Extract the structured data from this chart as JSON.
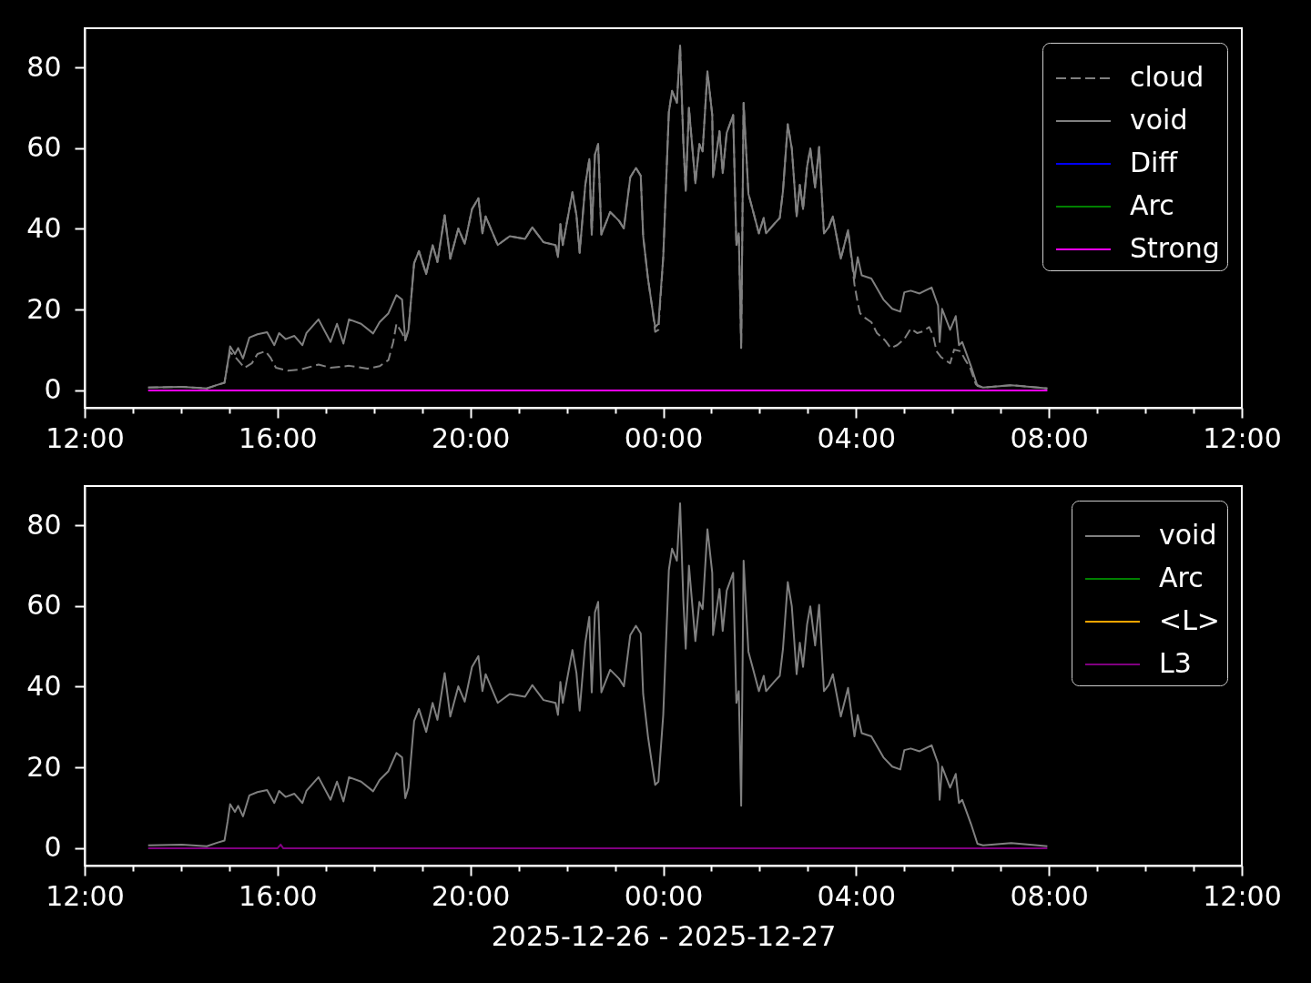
{
  "chart_data": [
    {
      "type": "line",
      "line_style": "solid",
      "legend": "top right",
      "xlim": [
        "2025-12-26T12:00",
        "2025-12-27T12:00"
      ],
      "ylim": [
        -4.3,
        89.7
      ],
      "yticks": [
        0,
        20,
        40,
        60,
        80
      ],
      "xticks": [
        {
          "value": "2025-12-26T12:00",
          "label": "12:00"
        },
        {
          "value": "2025-12-26T13:00",
          "label": null
        },
        {
          "value": "2025-12-26T14:00",
          "label": null
        },
        {
          "value": "2025-12-26T15:00",
          "label": null
        },
        {
          "value": "2025-12-26T16:00",
          "label": "16:00"
        },
        {
          "value": "2025-12-26T17:00",
          "label": null
        },
        {
          "value": "2025-12-26T18:00",
          "label": null
        },
        {
          "value": "2025-12-26T19:00",
          "label": null
        },
        {
          "value": "2025-12-26T20:00",
          "label": "20:00"
        },
        {
          "value": "2025-12-26T21:00",
          "label": null
        },
        {
          "value": "2025-12-26T22:00",
          "label": null
        },
        {
          "value": "2025-12-26T23:00",
          "label": null
        },
        {
          "value": "2025-12-27T00:00",
          "label": "00:00"
        },
        {
          "value": "2025-12-27T01:00",
          "label": null
        },
        {
          "value": "2025-12-27T02:00",
          "label": null
        },
        {
          "value": "2025-12-27T03:00",
          "label": null
        },
        {
          "value": "2025-12-27T04:00",
          "label": "04:00"
        },
        {
          "value": "2025-12-27T05:00",
          "label": null
        },
        {
          "value": "2025-12-27T06:00",
          "label": null
        },
        {
          "value": "2025-12-27T07:00",
          "label": null
        },
        {
          "value": "2025-12-27T08:00",
          "label": "08:00"
        },
        {
          "value": "2025-12-27T09:00",
          "label": null
        },
        {
          "value": "2025-12-27T10:00",
          "label": null
        },
        {
          "value": "2025-12-27T11:00",
          "label": null
        },
        {
          "value": "2025-12-27T12:00",
          "label": "12:00"
        }
      ],
      "x": [
        "2025-12-26T13:19",
        "2025-12-26T14:01",
        "2025-12-26T14:32",
        "2025-12-26T14:44",
        "2025-12-26T14:54",
        "2025-12-26T14:58",
        "2025-12-26T15:01",
        "2025-12-26T15:07",
        "2025-12-26T15:11",
        "2025-12-26T15:17",
        "2025-12-26T15:25",
        "2025-12-26T15:35",
        "2025-12-26T15:47",
        "2025-12-26T15:56",
        "2025-12-26T16:02",
        "2025-12-26T16:10",
        "2025-12-26T16:21",
        "2025-12-26T16:31",
        "2025-12-26T16:36",
        "2025-12-26T16:51",
        "2025-12-26T17:06",
        "2025-12-26T17:14",
        "2025-12-26T17:22",
        "2025-12-26T17:29",
        "2025-12-26T17:44",
        "2025-12-26T17:59",
        "2025-12-26T18:07",
        "2025-12-26T18:18",
        "2025-12-26T18:28",
        "2025-12-26T18:35",
        "2025-12-26T18:39",
        "2025-12-26T18:43",
        "2025-12-26T18:50",
        "2025-12-26T18:56",
        "2025-12-26T19:05",
        "2025-12-26T19:13",
        "2025-12-26T19:19",
        "2025-12-26T19:28",
        "2025-12-26T19:35",
        "2025-12-26T19:45",
        "2025-12-26T19:53",
        "2025-12-26T20:02",
        "2025-12-26T20:10",
        "2025-12-26T20:15",
        "2025-12-26T20:19",
        "2025-12-26T20:34",
        "2025-12-26T20:49",
        "2025-12-26T21:08",
        "2025-12-26T21:17",
        "2025-12-26T21:31",
        "2025-12-26T21:46",
        "2025-12-26T21:49",
        "2025-12-26T21:52",
        "2025-12-26T21:55",
        "2025-12-26T22:07",
        "2025-12-26T22:12",
        "2025-12-26T22:16",
        "2025-12-26T22:23",
        "2025-12-26T22:28",
        "2025-12-26T22:31",
        "2025-12-26T22:35",
        "2025-12-26T22:39",
        "2025-12-26T22:43",
        "2025-12-26T22:54",
        "2025-12-26T23:05",
        "2025-12-26T23:11",
        "2025-12-26T23:14",
        "2025-12-26T23:19",
        "2025-12-26T23:26",
        "2025-12-26T23:32",
        "2025-12-26T23:35",
        "2025-12-26T23:41",
        "2025-12-26T23:47",
        "2025-12-26T23:50",
        "2025-12-26T23:54",
        "2025-12-27T00:00",
        "2025-12-27T00:07",
        "2025-12-27T00:11",
        "2025-12-27T00:17",
        "2025-12-27T00:21",
        "2025-12-27T00:25",
        "2025-12-27T00:28",
        "2025-12-27T00:32",
        "2025-12-27T00:40",
        "2025-12-27T00:45",
        "2025-12-27T00:49",
        "2025-12-27T00:55",
        "2025-12-27T01:01",
        "2025-12-27T01:02",
        "2025-12-27T01:10",
        "2025-12-27T01:14",
        "2025-12-27T01:19",
        "2025-12-27T01:27",
        "2025-12-27T01:31",
        "2025-12-27T01:34",
        "2025-12-27T01:37",
        "2025-12-27T01:40",
        "2025-12-27T01:46",
        "2025-12-27T01:52",
        "2025-12-27T01:59",
        "2025-12-27T02:05",
        "2025-12-27T02:08",
        "2025-12-27T02:18",
        "2025-12-27T02:25",
        "2025-12-27T02:29",
        "2025-12-27T02:35",
        "2025-12-27T02:40",
        "2025-12-27T02:46",
        "2025-12-27T02:50",
        "2025-12-27T02:54",
        "2025-12-27T02:59",
        "2025-12-27T03:03",
        "2025-12-27T03:09",
        "2025-12-27T03:14",
        "2025-12-27T03:20",
        "2025-12-27T03:26",
        "2025-12-27T03:31",
        "2025-12-27T03:41",
        "2025-12-27T03:50",
        "2025-12-27T03:58",
        "2025-12-27T04:02",
        "2025-12-27T04:07",
        "2025-12-27T04:19",
        "2025-12-27T04:34",
        "2025-12-27T04:45",
        "2025-12-27T04:55",
        "2025-12-27T05:00",
        "2025-12-27T05:08",
        "2025-12-27T05:19",
        "2025-12-27T05:34",
        "2025-12-27T05:42",
        "2025-12-27T05:44",
        "2025-12-27T05:47",
        "2025-12-27T05:57",
        "2025-12-27T06:04",
        "2025-12-27T06:08",
        "2025-12-27T06:12",
        "2025-12-27T06:23",
        "2025-12-27T06:31",
        "2025-12-27T06:38",
        "2025-12-27T07:13",
        "2025-12-27T07:46",
        "2025-12-27T07:58"
      ],
      "series": [
        {
          "name": "cloud",
          "color": "#808080",
          "line_style": "dashed",
          "x": [
            "2025-12-26T13:19",
            "2025-12-26T14:01",
            "2025-12-26T14:32",
            "2025-12-26T14:44",
            "2025-12-26T14:54",
            "2025-12-26T14:58",
            "2025-12-26T15:01",
            "2025-12-26T15:09",
            "2025-12-26T15:19",
            "2025-12-26T15:28",
            "2025-12-26T15:35",
            "2025-12-26T15:45",
            "2025-12-26T15:51",
            "2025-12-26T15:58",
            "2025-12-26T16:13",
            "2025-12-26T16:29",
            "2025-12-26T16:51",
            "2025-12-26T17:06",
            "2025-12-26T17:29",
            "2025-12-26T17:52",
            "2025-12-26T18:07",
            "2025-12-26T18:18",
            "2025-12-26T18:24",
            "2025-12-26T18:28",
            "2025-12-26T18:35",
            "2025-12-26T18:39",
            "2025-12-26T18:43",
            "2025-12-26T18:50",
            "2025-12-26T18:56",
            "2025-12-26T19:05",
            "2025-12-26T19:13",
            "2025-12-26T19:19",
            "2025-12-26T19:28",
            "2025-12-26T19:35",
            "2025-12-26T19:45",
            "2025-12-26T19:53",
            "2025-12-26T20:02",
            "2025-12-26T20:10",
            "2025-12-26T20:15",
            "2025-12-26T20:19",
            "2025-12-26T20:34",
            "2025-12-26T20:49",
            "2025-12-26T21:08",
            "2025-12-26T21:17",
            "2025-12-26T21:31",
            "2025-12-26T21:46",
            "2025-12-26T21:49",
            "2025-12-26T21:52",
            "2025-12-26T21:55",
            "2025-12-26T22:07",
            "2025-12-26T22:12",
            "2025-12-26T22:16",
            "2025-12-26T22:23",
            "2025-12-26T22:28",
            "2025-12-26T22:31",
            "2025-12-26T22:35",
            "2025-12-26T22:39",
            "2025-12-26T22:43",
            "2025-12-26T22:54",
            "2025-12-26T23:05",
            "2025-12-26T23:11",
            "2025-12-26T23:14",
            "2025-12-26T23:19",
            "2025-12-26T23:26",
            "2025-12-26T23:32",
            "2025-12-26T23:35",
            "2025-12-26T23:41",
            "2025-12-26T23:47",
            "2025-12-26T23:50",
            "2025-12-26T23:54",
            "2025-12-27T00:00",
            "2025-12-27T00:07",
            "2025-12-27T00:11",
            "2025-12-27T00:17",
            "2025-12-27T00:21",
            "2025-12-27T00:25",
            "2025-12-27T00:28",
            "2025-12-27T00:32",
            "2025-12-27T00:40",
            "2025-12-27T00:45",
            "2025-12-27T00:49",
            "2025-12-27T00:55",
            "2025-12-27T01:01",
            "2025-12-27T01:02",
            "2025-12-27T01:10",
            "2025-12-27T01:14",
            "2025-12-27T01:19",
            "2025-12-27T01:27",
            "2025-12-27T01:31",
            "2025-12-27T01:34",
            "2025-12-27T01:37",
            "2025-12-27T01:40",
            "2025-12-27T01:46",
            "2025-12-27T01:52",
            "2025-12-27T01:59",
            "2025-12-27T02:05",
            "2025-12-27T02:08",
            "2025-12-27T02:18",
            "2025-12-27T02:25",
            "2025-12-27T02:29",
            "2025-12-27T02:35",
            "2025-12-27T02:40",
            "2025-12-27T02:46",
            "2025-12-27T02:50",
            "2025-12-27T02:54",
            "2025-12-27T02:59",
            "2025-12-27T03:03",
            "2025-12-27T03:09",
            "2025-12-27T03:14",
            "2025-12-27T03:20",
            "2025-12-27T03:26",
            "2025-12-27T03:31",
            "2025-12-27T03:41",
            "2025-12-27T03:50",
            "2025-12-27T03:58",
            "2025-12-27T04:02",
            "2025-12-27T04:05",
            "2025-12-27T04:11",
            "2025-12-27T04:19",
            "2025-12-27T04:26",
            "2025-12-27T04:36",
            "2025-12-27T04:43",
            "2025-12-27T04:51",
            "2025-12-27T05:00",
            "2025-12-27T05:08",
            "2025-12-27T05:16",
            "2025-12-27T05:23",
            "2025-12-27T05:31",
            "2025-12-27T05:36",
            "2025-12-27T05:40",
            "2025-12-27T05:46",
            "2025-12-27T05:57",
            "2025-12-27T06:02",
            "2025-12-27T06:10",
            "2025-12-27T06:16",
            "2025-12-27T06:22",
            "2025-12-27T06:29",
            "2025-12-27T06:38",
            "2025-12-27T07:13",
            "2025-12-27T07:46",
            "2025-12-27T07:58"
          ],
          "values": [
            0.7,
            0.9,
            0.5,
            1.3,
            1.9,
            6.7,
            9.5,
            7.9,
            5.6,
            6.7,
            9.0,
            9.7,
            8.2,
            5.6,
            4.9,
            5.2,
            6.4,
            5.6,
            6.1,
            5.4,
            6.0,
            7.5,
            12.0,
            16.5,
            14.2,
            12.4,
            15.0,
            31.5,
            34.5,
            28.8,
            36.0,
            31.8,
            43.4,
            32.6,
            40.1,
            36.3,
            44.9,
            47.6,
            38.9,
            43.1,
            36.0,
            38.2,
            37.5,
            40.4,
            36.7,
            36.0,
            33.0,
            41.2,
            36.0,
            49.1,
            43.4,
            34.1,
            50.9,
            57.3,
            38.6,
            58.4,
            61.0,
            38.6,
            44.2,
            42.0,
            40.1,
            44.9,
            52.8,
            55.1,
            53.2,
            38.2,
            27.7,
            19.5,
            14.5,
            15.0,
            33.0,
            68.9,
            74.2,
            71.2,
            85.4,
            61.4,
            49.4,
            70.0,
            51.3,
            61.0,
            59.2,
            79.0,
            68.2,
            52.8,
            64.2,
            53.8,
            63.8,
            68.2,
            36.0,
            38.9,
            10.5,
            71.2,
            48.7,
            44.2,
            38.9,
            42.7,
            38.9,
            41.2,
            42.7,
            49.4,
            65.9,
            59.9,
            43.1,
            50.9,
            44.9,
            55.4,
            59.9,
            50.2,
            60.3,
            38.9,
            40.4,
            43.1,
            32.6,
            39.7,
            26.2,
            21.7,
            19.1,
            18.0,
            16.9,
            14.2,
            12.4,
            10.5,
            11.2,
            12.7,
            15.3,
            14.2,
            14.6,
            15.7,
            13.5,
            9.7,
            8.2,
            6.7,
            10.1,
            9.7,
            7.5,
            5.6,
            1.5,
            0.7,
            1.3,
            0.7,
            0.5
          ]
        },
        {
          "name": "void",
          "color": "#808080",
          "values": [
            0.7,
            0.9,
            0.5,
            1.3,
            1.9,
            6.7,
            10.9,
            9.0,
            10.5,
            7.9,
            13.1,
            13.9,
            14.4,
            11.2,
            14.2,
            12.7,
            13.5,
            11.2,
            14.2,
            17.6,
            12.0,
            16.5,
            11.6,
            17.6,
            16.5,
            14.1,
            16.9,
            19.1,
            23.6,
            22.5,
            12.4,
            15.0,
            31.5,
            34.5,
            28.8,
            36.0,
            31.8,
            43.4,
            32.6,
            40.1,
            36.3,
            44.9,
            47.6,
            38.9,
            43.1,
            36.0,
            38.2,
            37.5,
            40.4,
            36.7,
            36.0,
            33.0,
            41.2,
            36.0,
            49.1,
            43.4,
            34.1,
            50.9,
            57.3,
            38.6,
            58.4,
            61.0,
            38.6,
            44.2,
            42.0,
            40.1,
            44.9,
            52.8,
            55.1,
            53.2,
            38.2,
            27.7,
            19.5,
            15.7,
            16.5,
            33.0,
            68.9,
            74.2,
            71.2,
            85.4,
            61.4,
            49.4,
            70.0,
            51.3,
            61.0,
            59.2,
            79.0,
            68.2,
            52.8,
            64.2,
            53.8,
            63.8,
            68.2,
            36.0,
            38.9,
            10.5,
            71.2,
            48.7,
            44.2,
            38.9,
            42.7,
            38.9,
            41.2,
            42.7,
            49.4,
            65.9,
            59.9,
            43.1,
            50.9,
            44.9,
            55.4,
            59.9,
            50.2,
            60.3,
            38.9,
            40.4,
            43.1,
            32.6,
            39.7,
            27.7,
            33.0,
            28.5,
            27.7,
            22.5,
            20.2,
            19.5,
            24.3,
            24.7,
            24.0,
            25.5,
            21.0,
            12.0,
            20.2,
            15.0,
            18.4,
            11.2,
            12.0,
            6.0,
            1.1,
            0.7,
            1.3,
            0.7,
            0.5
          ]
        },
        {
          "name": "Diff",
          "color": "#0000ff",
          "values": [
            null,
            null,
            null,
            null,
            null,
            null,
            null,
            null,
            null,
            null,
            null,
            null,
            null,
            null,
            null,
            null,
            null,
            null,
            null,
            null,
            null,
            null,
            null,
            null,
            null,
            null,
            null,
            null,
            null,
            null,
            null,
            null,
            null,
            null,
            null,
            null,
            null,
            null,
            null,
            null,
            null,
            null,
            null,
            null,
            null,
            null,
            null,
            null,
            null,
            null,
            null,
            null,
            null,
            null,
            null,
            null,
            null,
            null,
            null,
            null,
            null,
            null,
            null,
            null,
            null,
            null,
            null,
            null,
            null,
            null,
            null,
            null,
            null,
            null,
            null,
            null,
            null,
            null,
            null,
            null,
            null,
            null,
            null,
            null,
            null,
            null,
            null,
            null,
            null,
            null,
            null,
            null,
            null,
            null,
            null,
            null,
            null,
            null,
            null,
            null,
            null,
            null,
            null,
            null,
            null,
            null,
            null,
            null,
            null,
            null,
            null,
            null,
            null,
            null,
            null,
            null,
            null,
            null,
            null,
            null,
            null,
            null,
            null,
            null,
            null,
            null,
            null,
            null,
            null,
            null,
            null,
            null,
            null,
            null,
            null,
            null,
            null,
            null,
            null,
            null,
            null,
            null,
            null
          ]
        },
        {
          "name": "Arc",
          "color": "#008000",
          "values": [
            null,
            null,
            null,
            null,
            null,
            null,
            null,
            null,
            null,
            null,
            null,
            null,
            null,
            null,
            null,
            null,
            null,
            null,
            null,
            null,
            null,
            null,
            null,
            null,
            null,
            null,
            null,
            null,
            null,
            null,
            null,
            null,
            null,
            null,
            null,
            null,
            null,
            null,
            null,
            null,
            null,
            null,
            null,
            null,
            null,
            null,
            null,
            null,
            null,
            null,
            null,
            null,
            null,
            null,
            null,
            null,
            null,
            null,
            null,
            null,
            null,
            null,
            null,
            null,
            null,
            null,
            null,
            null,
            null,
            null,
            null,
            null,
            null,
            null,
            null,
            null,
            null,
            null,
            null,
            null,
            null,
            null,
            null,
            null,
            null,
            null,
            null,
            null,
            null,
            null,
            null,
            null,
            null,
            null,
            null,
            null,
            null,
            null,
            null,
            null,
            null,
            null,
            null,
            null,
            null,
            null,
            null,
            null,
            null,
            null,
            null,
            null,
            null,
            null,
            null,
            null,
            null,
            null,
            null,
            null,
            null,
            null,
            null,
            null,
            null,
            null,
            null,
            null,
            null,
            null,
            null,
            null,
            null,
            null,
            null,
            null,
            null,
            null,
            null,
            null,
            null,
            null,
            null
          ]
        },
        {
          "name": "Strong",
          "color": "#ff00ff",
          "x": [
            "2025-12-26T13:19",
            "2025-12-27T07:58"
          ],
          "values": [
            0,
            0
          ]
        }
      ]
    },
    {
      "type": "line",
      "line_style": "solid",
      "legend": "top right",
      "xlabel": "2025-12-26 - 2025-12-27",
      "xlim": [
        "2025-12-26T12:00",
        "2025-12-27T12:00"
      ],
      "ylim": [
        -4.3,
        89.7
      ],
      "yticks": [
        0,
        20,
        40,
        60,
        80
      ],
      "xticks": [
        {
          "value": "2025-12-26T12:00",
          "label": "12:00"
        },
        {
          "value": "2025-12-26T13:00",
          "label": null
        },
        {
          "value": "2025-12-26T14:00",
          "label": null
        },
        {
          "value": "2025-12-26T15:00",
          "label": null
        },
        {
          "value": "2025-12-26T16:00",
          "label": "16:00"
        },
        {
          "value": "2025-12-26T17:00",
          "label": null
        },
        {
          "value": "2025-12-26T18:00",
          "label": null
        },
        {
          "value": "2025-12-26T19:00",
          "label": null
        },
        {
          "value": "2025-12-26T20:00",
          "label": "20:00"
        },
        {
          "value": "2025-12-26T21:00",
          "label": null
        },
        {
          "value": "2025-12-26T22:00",
          "label": null
        },
        {
          "value": "2025-12-26T23:00",
          "label": null
        },
        {
          "value": "2025-12-27T00:00",
          "label": "00:00"
        },
        {
          "value": "2025-12-27T01:00",
          "label": null
        },
        {
          "value": "2025-12-27T02:00",
          "label": null
        },
        {
          "value": "2025-12-27T03:00",
          "label": null
        },
        {
          "value": "2025-12-27T04:00",
          "label": "04:00"
        },
        {
          "value": "2025-12-27T05:00",
          "label": null
        },
        {
          "value": "2025-12-27T06:00",
          "label": null
        },
        {
          "value": "2025-12-27T07:00",
          "label": null
        },
        {
          "value": "2025-12-27T08:00",
          "label": "08:00"
        },
        {
          "value": "2025-12-27T09:00",
          "label": null
        },
        {
          "value": "2025-12-27T10:00",
          "label": null
        },
        {
          "value": "2025-12-27T11:00",
          "label": null
        },
        {
          "value": "2025-12-27T12:00",
          "label": "12:00"
        }
      ],
      "x": [
        "2025-12-26T13:19",
        "2025-12-26T14:01",
        "2025-12-26T14:32",
        "2025-12-26T14:44",
        "2025-12-26T14:54",
        "2025-12-26T14:58",
        "2025-12-26T15:01",
        "2025-12-26T15:07",
        "2025-12-26T15:11",
        "2025-12-26T15:17",
        "2025-12-26T15:25",
        "2025-12-26T15:35",
        "2025-12-26T15:47",
        "2025-12-26T15:56",
        "2025-12-26T16:02",
        "2025-12-26T16:10",
        "2025-12-26T16:21",
        "2025-12-26T16:31",
        "2025-12-26T16:36",
        "2025-12-26T16:51",
        "2025-12-26T17:06",
        "2025-12-26T17:14",
        "2025-12-26T17:22",
        "2025-12-26T17:29",
        "2025-12-26T17:44",
        "2025-12-26T17:59",
        "2025-12-26T18:07",
        "2025-12-26T18:18",
        "2025-12-26T18:28",
        "2025-12-26T18:35",
        "2025-12-26T18:39",
        "2025-12-26T18:43",
        "2025-12-26T18:50",
        "2025-12-26T18:56",
        "2025-12-26T19:05",
        "2025-12-26T19:13",
        "2025-12-26T19:19",
        "2025-12-26T19:28",
        "2025-12-26T19:35",
        "2025-12-26T19:45",
        "2025-12-26T19:53",
        "2025-12-26T20:02",
        "2025-12-26T20:10",
        "2025-12-26T20:15",
        "2025-12-26T20:19",
        "2025-12-26T20:34",
        "2025-12-26T20:49",
        "2025-12-26T21:08",
        "2025-12-26T21:17",
        "2025-12-26T21:31",
        "2025-12-26T21:46",
        "2025-12-26T21:49",
        "2025-12-26T21:52",
        "2025-12-26T21:55",
        "2025-12-26T22:07",
        "2025-12-26T22:12",
        "2025-12-26T22:16",
        "2025-12-26T22:23",
        "2025-12-26T22:28",
        "2025-12-26T22:31",
        "2025-12-26T22:35",
        "2025-12-26T22:39",
        "2025-12-26T22:43",
        "2025-12-26T22:54",
        "2025-12-26T23:05",
        "2025-12-26T23:11",
        "2025-12-26T23:14",
        "2025-12-26T23:19",
        "2025-12-26T23:26",
        "2025-12-26T23:32",
        "2025-12-26T23:35",
        "2025-12-26T23:41",
        "2025-12-26T23:47",
        "2025-12-26T23:50",
        "2025-12-26T23:54",
        "2025-12-27T00:00",
        "2025-12-27T00:07",
        "2025-12-27T00:11",
        "2025-12-27T00:17",
        "2025-12-27T00:21",
        "2025-12-27T00:25",
        "2025-12-27T00:28",
        "2025-12-27T00:32",
        "2025-12-27T00:40",
        "2025-12-27T00:45",
        "2025-12-27T00:49",
        "2025-12-27T00:55",
        "2025-12-27T01:01",
        "2025-12-27T01:02",
        "2025-12-27T01:10",
        "2025-12-27T01:14",
        "2025-12-27T01:19",
        "2025-12-27T01:27",
        "2025-12-27T01:31",
        "2025-12-27T01:34",
        "2025-12-27T01:37",
        "2025-12-27T01:40",
        "2025-12-27T01:46",
        "2025-12-27T01:52",
        "2025-12-27T01:59",
        "2025-12-27T02:05",
        "2025-12-27T02:08",
        "2025-12-27T02:18",
        "2025-12-27T02:25",
        "2025-12-27T02:29",
        "2025-12-27T02:35",
        "2025-12-27T02:40",
        "2025-12-27T02:46",
        "2025-12-27T02:50",
        "2025-12-27T02:54",
        "2025-12-27T02:59",
        "2025-12-27T03:03",
        "2025-12-27T03:09",
        "2025-12-27T03:14",
        "2025-12-27T03:20",
        "2025-12-27T03:26",
        "2025-12-27T03:31",
        "2025-12-27T03:41",
        "2025-12-27T03:50",
        "2025-12-27T03:58",
        "2025-12-27T04:02",
        "2025-12-27T04:07",
        "2025-12-27T04:19",
        "2025-12-27T04:34",
        "2025-12-27T04:45",
        "2025-12-27T04:55",
        "2025-12-27T05:00",
        "2025-12-27T05:08",
        "2025-12-27T05:19",
        "2025-12-27T05:34",
        "2025-12-27T05:42",
        "2025-12-27T05:44",
        "2025-12-27T05:47",
        "2025-12-27T05:57",
        "2025-12-27T06:04",
        "2025-12-27T06:08",
        "2025-12-27T06:12",
        "2025-12-27T06:23",
        "2025-12-27T06:31",
        "2025-12-27T06:38",
        "2025-12-27T07:13",
        "2025-12-27T07:46",
        "2025-12-27T07:58"
      ],
      "series": [
        {
          "name": "void",
          "color": "#808080",
          "values": [
            0.7,
            0.9,
            0.5,
            1.3,
            1.9,
            6.7,
            10.9,
            9.0,
            10.5,
            7.9,
            13.1,
            13.9,
            14.4,
            11.2,
            14.2,
            12.7,
            13.5,
            11.2,
            14.2,
            17.6,
            12.0,
            16.5,
            11.6,
            17.6,
            16.5,
            14.1,
            16.9,
            19.1,
            23.6,
            22.5,
            12.4,
            15.0,
            31.5,
            34.5,
            28.8,
            36.0,
            31.8,
            43.4,
            32.6,
            40.1,
            36.3,
            44.9,
            47.6,
            38.9,
            43.1,
            36.0,
            38.2,
            37.5,
            40.4,
            36.7,
            36.0,
            33.0,
            41.2,
            36.0,
            49.1,
            43.4,
            34.1,
            50.9,
            57.3,
            38.6,
            58.4,
            61.0,
            38.6,
            44.2,
            42.0,
            40.1,
            44.9,
            52.8,
            55.1,
            53.2,
            38.2,
            27.7,
            19.5,
            15.7,
            16.5,
            33.0,
            68.9,
            74.2,
            71.2,
            85.4,
            61.4,
            49.4,
            70.0,
            51.3,
            61.0,
            59.2,
            79.0,
            68.2,
            52.8,
            64.2,
            53.8,
            63.8,
            68.2,
            36.0,
            38.9,
            10.5,
            71.2,
            48.7,
            44.2,
            38.9,
            42.7,
            38.9,
            41.2,
            42.7,
            49.4,
            65.9,
            59.9,
            43.1,
            50.9,
            44.9,
            55.4,
            59.9,
            50.2,
            60.3,
            38.9,
            40.4,
            43.1,
            32.6,
            39.7,
            27.7,
            33.0,
            28.5,
            27.7,
            22.5,
            20.2,
            19.5,
            24.3,
            24.7,
            24.0,
            25.5,
            21.0,
            12.0,
            20.2,
            15.0,
            18.4,
            11.2,
            12.0,
            6.0,
            1.1,
            0.7,
            1.3,
            0.7,
            0.5
          ]
        },
        {
          "name": "Arc",
          "color": "#008000",
          "values": [
            null,
            null,
            null,
            null,
            null,
            null,
            null,
            null,
            null,
            null,
            null,
            null,
            null,
            null,
            null,
            null,
            null,
            null,
            null,
            null,
            null,
            null,
            null,
            null,
            null,
            null,
            null,
            null,
            null,
            null,
            null,
            null,
            null,
            null,
            null,
            null,
            null,
            null,
            null,
            null,
            null,
            null,
            null,
            null,
            null,
            null,
            null,
            null,
            null,
            null,
            null,
            null,
            null,
            null,
            null,
            null,
            null,
            null,
            null,
            null,
            null,
            null,
            null,
            null,
            null,
            null,
            null,
            null,
            null,
            null,
            null,
            null,
            null,
            null,
            null,
            null,
            null,
            null,
            null,
            null,
            null,
            null,
            null,
            null,
            null,
            null,
            null,
            null,
            null,
            null,
            null,
            null,
            null,
            null,
            null,
            null,
            null,
            null,
            null,
            null,
            null,
            null,
            null,
            null,
            null,
            null,
            null,
            null,
            null,
            null,
            null,
            null,
            null,
            null,
            null,
            null,
            null,
            null,
            null,
            null,
            null,
            null,
            null,
            null,
            null,
            null,
            null,
            null,
            null,
            null,
            null,
            null,
            null,
            null,
            null,
            null,
            null,
            null,
            null,
            null,
            null,
            null,
            null
          ]
        },
        {
          "name": "<L>",
          "color": "#ffa500",
          "values": [
            null,
            null,
            null,
            null,
            null,
            null,
            null,
            null,
            null,
            null,
            null,
            null,
            null,
            null,
            null,
            null,
            null,
            null,
            null,
            null,
            null,
            null,
            null,
            null,
            null,
            null,
            null,
            null,
            null,
            null,
            null,
            null,
            null,
            null,
            null,
            null,
            null,
            null,
            null,
            null,
            null,
            null,
            null,
            null,
            null,
            null,
            null,
            null,
            null,
            null,
            null,
            null,
            null,
            null,
            null,
            null,
            null,
            null,
            null,
            null,
            null,
            null,
            null,
            null,
            null,
            null,
            null,
            null,
            null,
            null,
            null,
            null,
            null,
            null,
            null,
            null,
            null,
            null,
            null,
            null,
            null,
            null,
            null,
            null,
            null,
            null,
            null,
            null,
            null,
            null,
            null,
            null,
            null,
            null,
            null,
            null,
            null,
            null,
            null,
            null,
            null,
            null,
            null,
            null,
            null,
            null,
            null,
            null,
            null,
            null,
            null,
            null,
            null,
            null,
            null,
            null,
            null,
            null,
            null,
            null,
            null,
            null,
            null,
            null,
            null,
            null,
            null,
            null,
            null,
            null,
            null,
            null,
            null,
            null,
            null,
            null,
            null,
            null,
            null,
            null,
            null,
            null,
            null
          ]
        },
        {
          "name": "L3",
          "color": "#800080",
          "x": [
            "2025-12-26T13:19",
            "2025-12-26T16:00",
            "2025-12-26T16:04",
            "2025-12-26T16:07",
            "2025-12-27T07:58"
          ],
          "values": [
            0,
            0,
            0.9,
            0,
            0
          ]
        }
      ]
    }
  ]
}
